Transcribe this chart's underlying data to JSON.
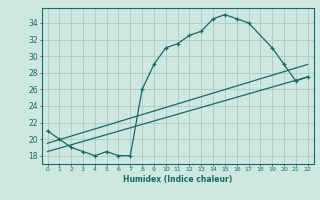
{
  "xlabel": "Humidex (Indice chaleur)",
  "ylabel": "",
  "bg_color": "#cce8e0",
  "grid_color": "#aaccc4",
  "line_color": "#1a6b5a",
  "xlim": [
    -0.5,
    22.5
  ],
  "ylim": [
    17.0,
    35.8
  ],
  "xticks": [
    0,
    1,
    2,
    3,
    4,
    5,
    6,
    7,
    8,
    9,
    10,
    11,
    12,
    13,
    14,
    15,
    16,
    17,
    18,
    19,
    20,
    21,
    22
  ],
  "yticks": [
    18,
    20,
    22,
    24,
    26,
    28,
    30,
    32,
    34
  ],
  "series": [
    {
      "x": [
        0,
        1,
        2,
        3,
        4,
        5,
        6,
        7,
        8,
        9,
        10,
        11,
        12,
        13,
        14,
        15,
        16,
        17,
        19,
        20,
        21,
        22
      ],
      "y": [
        21,
        20,
        19,
        18.5,
        18,
        18.5,
        18,
        18,
        26,
        29,
        31,
        31.5,
        32.5,
        33,
        34.5,
        35,
        34.5,
        34,
        31,
        29,
        27,
        27.5
      ]
    },
    {
      "x": [
        0,
        22
      ],
      "y": [
        19.5,
        29.0
      ]
    },
    {
      "x": [
        0,
        22
      ],
      "y": [
        18.5,
        27.5
      ]
    }
  ]
}
